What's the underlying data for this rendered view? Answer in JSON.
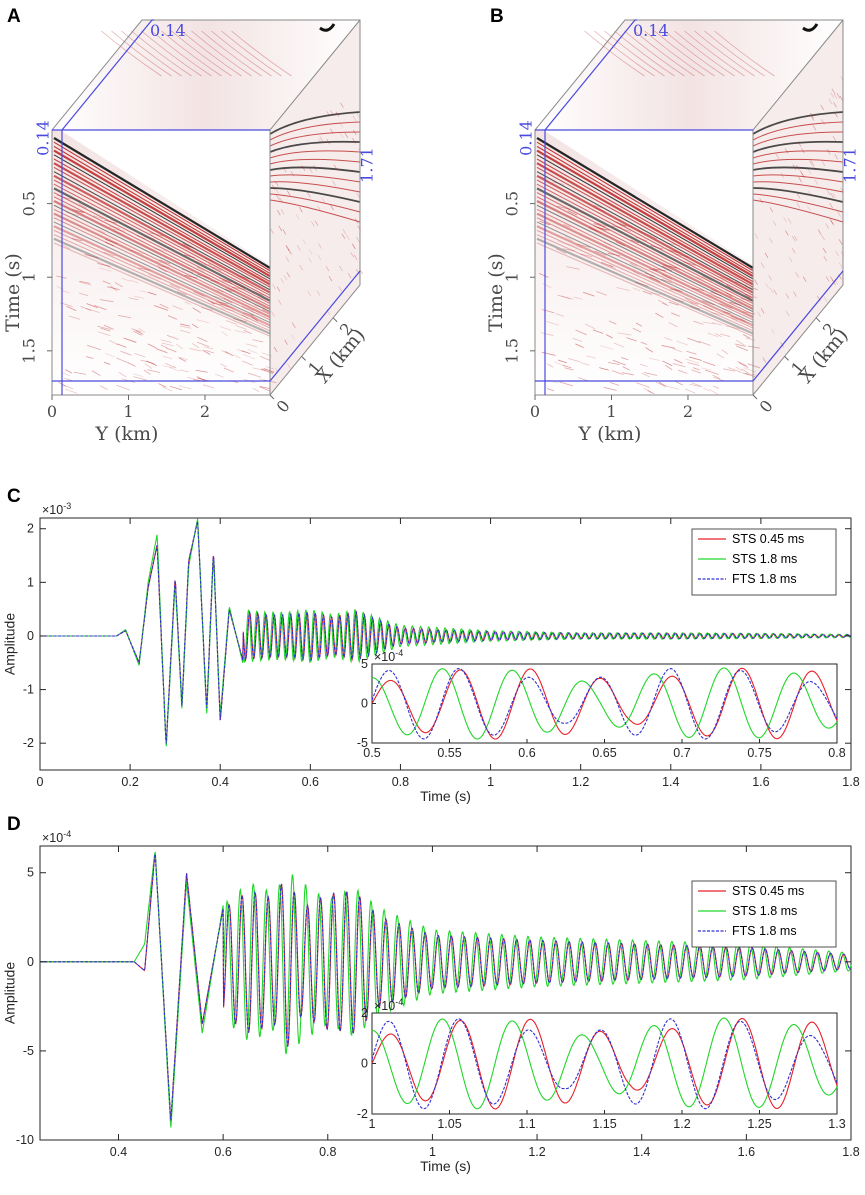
{
  "colors": {
    "sts045": "#e8202a",
    "sts18": "#22d62a",
    "fts18": "#3030d0",
    "blue_frame": "#4a4adf",
    "seismic_red": "#b81a1a"
  },
  "panels_3d": [
    {
      "label": "A",
      "ylabel": "Time (s)",
      "xlabel_front": "Y (km)",
      "xlabel_side": "X (km)",
      "time_ticks": [
        "0.5",
        "1",
        "1.5"
      ],
      "y_ticks": [
        "0",
        "1",
        "2"
      ],
      "x_ticks": [
        "0",
        "1",
        "2"
      ],
      "slice_top_label": "0.14",
      "slice_left_label": "0.14",
      "slice_side_label": "1.71"
    },
    {
      "label": "B",
      "ylabel": "Time (s)",
      "xlabel_front": "Y (km)",
      "xlabel_side": "X (km)",
      "time_ticks": [
        "0.5",
        "1",
        "1.5"
      ],
      "y_ticks": [
        "0",
        "1",
        "2"
      ],
      "x_ticks": [
        "0",
        "1",
        "2"
      ],
      "slice_top_label": "0.14",
      "slice_left_label": "0.14",
      "slice_side_label": "1.71"
    }
  ],
  "chart_data": [
    {
      "panel": "C",
      "type": "line",
      "xlabel": "Time (s)",
      "ylabel": "Amplitude",
      "exponent": "-3",
      "xlim": [
        0,
        1.8
      ],
      "ylim": [
        -2.5,
        2.2
      ],
      "xticks": [
        0,
        0.2,
        0.4,
        0.6,
        0.8,
        1,
        1.2,
        1.4,
        1.6,
        1.8
      ],
      "xtick_labels": [
        "0",
        "0.2",
        "0.4",
        "0.6",
        "0.8",
        "1",
        "1.2",
        "1.4",
        "1.6",
        "1.8"
      ],
      "yticks": [
        -2,
        -1,
        0,
        1,
        2
      ],
      "ytick_labels": [
        "-2",
        "-1",
        "0",
        "1",
        "2"
      ],
      "legend": [
        "STS 0.45 ms",
        "STS 1.8 ms",
        "FTS 1.8 ms"
      ],
      "series": [
        {
          "name": "STS 0.45 ms",
          "x": [
            0,
            0.17,
            0.19,
            0.22,
            0.24,
            0.26,
            0.28,
            0.3,
            0.315,
            0.33,
            0.35,
            0.37,
            0.385,
            0.4,
            0.42,
            0.45,
            0.5,
            0.55,
            0.6,
            0.65,
            0.7,
            0.8,
            1.0,
            1.2,
            1.4,
            1.6,
            1.8
          ],
          "y": [
            0,
            0,
            0.1,
            -0.5,
            0.9,
            1.7,
            -2.05,
            1.1,
            -1.3,
            1.4,
            2.15,
            -1.4,
            1.6,
            -1.6,
            0.5,
            -0.45,
            0.4,
            -0.4,
            0.45,
            -0.35,
            0.45,
            -0.15,
            0.08,
            -0.05,
            0.05,
            -0.04,
            0.02
          ]
        },
        {
          "name": "STS 1.8 ms",
          "x": [
            0,
            0.17,
            0.19,
            0.22,
            0.24,
            0.26,
            0.28,
            0.3,
            0.315,
            0.33,
            0.35,
            0.37,
            0.385,
            0.4,
            0.42,
            0.45,
            0.5,
            0.55,
            0.6,
            0.65,
            0.7,
            0.8,
            1.0,
            1.2,
            1.4,
            1.6,
            1.8
          ],
          "y": [
            0,
            0,
            0.12,
            -0.55,
            1.0,
            1.9,
            -2.1,
            1.0,
            -1.35,
            1.3,
            2.2,
            -1.5,
            1.55,
            -1.5,
            0.55,
            -0.5,
            0.45,
            -0.45,
            0.5,
            -0.4,
            0.5,
            -0.2,
            0.1,
            -0.06,
            0.06,
            -0.05,
            0.03
          ]
        },
        {
          "name": "FTS 1.8 ms",
          "x": [
            0,
            0.17,
            0.19,
            0.22,
            0.24,
            0.26,
            0.28,
            0.3,
            0.315,
            0.33,
            0.35,
            0.37,
            0.385,
            0.4,
            0.42,
            0.45,
            0.5,
            0.55,
            0.6,
            0.65,
            0.7,
            0.8,
            1.0,
            1.2,
            1.4,
            1.6,
            1.8
          ],
          "y": [
            0,
            0,
            0.1,
            -0.5,
            0.9,
            1.7,
            -2.05,
            1.1,
            -1.3,
            1.4,
            2.15,
            -1.4,
            1.6,
            -1.6,
            0.5,
            -0.45,
            0.4,
            -0.4,
            0.45,
            -0.35,
            0.45,
            -0.15,
            0.08,
            -0.05,
            0.05,
            -0.04,
            0.02
          ]
        }
      ],
      "inset": {
        "xlim": [
          0.5,
          0.8
        ],
        "ylim": [
          -5,
          5
        ],
        "exponent": "-4",
        "xticks": [
          0.5,
          0.55,
          0.6,
          0.65,
          0.7,
          0.75,
          0.8
        ],
        "xtick_labels": [
          "0.5",
          "0.55",
          "0.6",
          "0.65",
          "0.7",
          "0.75",
          "0.8"
        ],
        "yticks": [
          -5,
          0,
          5
        ],
        "ytick_labels": [
          "-5",
          "0",
          "5"
        ]
      }
    },
    {
      "panel": "D",
      "type": "line",
      "xlabel": "Time (s)",
      "ylabel": "Amplitude",
      "exponent": "-4",
      "xlim": [
        0.25,
        1.8
      ],
      "ylim": [
        -10,
        6.5
      ],
      "xticks": [
        0.4,
        0.6,
        0.8,
        1,
        1.2,
        1.4,
        1.6,
        1.8
      ],
      "xtick_labels": [
        "0.4",
        "0.6",
        "0.8",
        "1",
        "1.2",
        "1.4",
        "1.6",
        "1.8"
      ],
      "yticks": [
        -10,
        -5,
        0,
        5
      ],
      "ytick_labels": [
        "-10",
        "-5",
        "0",
        "5"
      ],
      "legend": [
        "STS 0.45 ms",
        "STS 1.8 ms",
        "FTS 1.8 ms"
      ],
      "series": [
        {
          "name": "STS 0.45 ms",
          "x": [
            0.25,
            0.43,
            0.45,
            0.47,
            0.5,
            0.53,
            0.56,
            0.6,
            0.65,
            0.7,
            0.72,
            0.75,
            0.8,
            0.85,
            0.9,
            1.0,
            1.2,
            1.4,
            1.6,
            1.8
          ],
          "y": [
            0,
            0,
            -0.5,
            6.2,
            -9.0,
            5.0,
            -3.5,
            3.0,
            -4.0,
            3.5,
            -5.0,
            3.0,
            3.8,
            -4.0,
            2.5,
            -1.5,
            1.2,
            -1.0,
            0.8,
            -0.4
          ]
        },
        {
          "name": "STS 1.8 ms",
          "x": [
            0.25,
            0.43,
            0.45,
            0.47,
            0.5,
            0.53,
            0.56,
            0.6,
            0.65,
            0.7,
            0.72,
            0.75,
            0.8,
            0.85,
            0.9,
            1.0,
            1.2,
            1.4,
            1.6,
            1.8
          ],
          "y": [
            0,
            0,
            1.0,
            6.3,
            -9.4,
            4.5,
            -4.0,
            3.2,
            -4.5,
            3.8,
            -5.2,
            4.5,
            3.5,
            -4.2,
            3.0,
            -1.8,
            1.4,
            -1.2,
            1.0,
            -0.5
          ]
        },
        {
          "name": "FTS 1.8 ms",
          "x": [
            0.25,
            0.43,
            0.45,
            0.47,
            0.5,
            0.53,
            0.56,
            0.6,
            0.65,
            0.7,
            0.72,
            0.75,
            0.8,
            0.85,
            0.9,
            1.0,
            1.2,
            1.4,
            1.6,
            1.8
          ],
          "y": [
            0,
            0,
            -0.5,
            6.2,
            -9.0,
            5.0,
            -3.5,
            3.0,
            -4.0,
            3.5,
            -5.0,
            3.0,
            3.8,
            -4.0,
            2.5,
            -1.5,
            1.2,
            -1.0,
            0.8,
            -0.4
          ]
        }
      ],
      "inset": {
        "xlim": [
          1.0,
          1.3
        ],
        "ylim": [
          -2,
          2
        ],
        "exponent": "-4",
        "xticks": [
          1,
          1.05,
          1.1,
          1.15,
          1.2,
          1.25,
          1.3
        ],
        "xtick_labels": [
          "1",
          "1.05",
          "1.1",
          "1.15",
          "1.2",
          "1.25",
          "1.3"
        ],
        "yticks": [
          -2,
          0,
          2
        ],
        "ytick_labels": [
          "-2",
          "0",
          "2"
        ]
      }
    }
  ]
}
